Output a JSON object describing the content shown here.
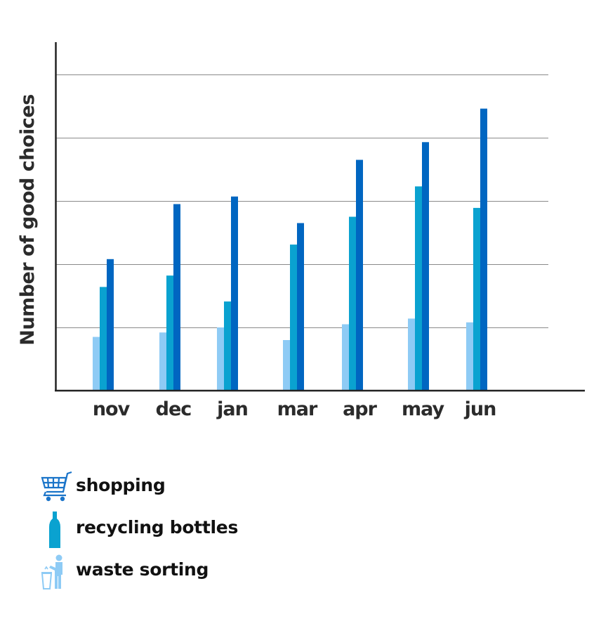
{
  "chart_data": {
    "type": "bar",
    "title": "",
    "xlabel": "",
    "ylabel": "Number of good choices",
    "categories": [
      "nov",
      "dec",
      "jan",
      "mar",
      "apr",
      "may",
      "jun"
    ],
    "series": [
      {
        "name": "waste sorting",
        "color": "#8ecbf5",
        "values": [
          0.85,
          0.92,
          1.0,
          0.8,
          1.05,
          1.14,
          1.08
        ]
      },
      {
        "name": "recycling bottles",
        "color": "#0aa2d0",
        "values": [
          1.64,
          1.82,
          1.41,
          2.31,
          2.75,
          3.23,
          2.89
        ]
      },
      {
        "name": "shopping",
        "color": "#0066c1",
        "values": [
          2.08,
          2.95,
          3.07,
          2.65,
          3.65,
          3.93,
          4.46
        ]
      }
    ],
    "ylim": [
      0,
      5.5
    ],
    "grid": true,
    "legend_position": "bottom-left"
  },
  "legend": {
    "items": [
      {
        "label": "shopping",
        "icon": "shopping-cart-icon",
        "color": "#0066c1"
      },
      {
        "label": "recycling bottles",
        "icon": "bottle-icon",
        "color": "#0aa2d0"
      },
      {
        "label": "waste sorting",
        "icon": "person-trash-bin-icon",
        "color": "#8ecbf5"
      }
    ]
  }
}
